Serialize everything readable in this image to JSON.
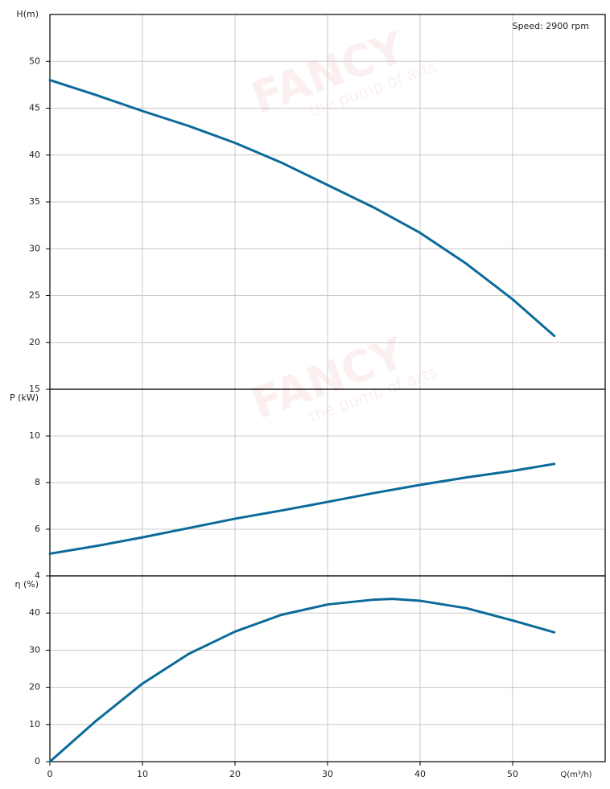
{
  "watermark": {
    "brand": "FANCY",
    "tagline": "the pump of arts"
  },
  "chart_data": [
    {
      "type": "line",
      "y_label": "H(m)",
      "annotation": "Speed: 2900 rpm",
      "color": "#0b6a9a",
      "x": [
        0,
        5,
        10,
        15,
        20,
        25,
        30,
        35,
        40,
        45,
        50,
        54.5
      ],
      "values": [
        48,
        46.4,
        44.7,
        43.1,
        41.3,
        39.2,
        36.8,
        34.4,
        31.7,
        28.4,
        24.6,
        20.7
      ],
      "xlim": [
        0,
        60
      ],
      "xticks": [
        0,
        10,
        20,
        30,
        40,
        50
      ],
      "ylim": [
        15,
        55
      ],
      "yticks": [
        15,
        20,
        25,
        30,
        35,
        40,
        45,
        50
      ],
      "grid": true
    },
    {
      "type": "line",
      "y_label": "P (kW)",
      "color": "#0b6a9a",
      "x": [
        0,
        5,
        10,
        15,
        20,
        25,
        30,
        35,
        40,
        45,
        50,
        54.5
      ],
      "values": [
        4.95,
        5.28,
        5.65,
        6.05,
        6.45,
        6.8,
        7.17,
        7.55,
        7.9,
        8.22,
        8.5,
        8.8
      ],
      "xlim": [
        0,
        60
      ],
      "xticks": [
        0,
        10,
        20,
        30,
        40,
        50
      ],
      "ylim": [
        4,
        12
      ],
      "yticks": [
        4,
        6,
        8,
        10
      ],
      "grid": true
    },
    {
      "type": "line",
      "y_label": "η (%)",
      "x_label": "Q(m³/h)",
      "color": "#0b6a9a",
      "x": [
        0,
        5,
        10,
        15,
        20,
        25,
        30,
        35,
        37,
        40,
        45,
        50,
        54.5
      ],
      "values": [
        0,
        11,
        21,
        29,
        35,
        39.5,
        42.3,
        43.6,
        43.8,
        43.3,
        41.3,
        38,
        34.8
      ],
      "xlim": [
        0,
        60
      ],
      "xticks": [
        0,
        10,
        20,
        30,
        40,
        50
      ],
      "ylim": [
        0,
        50
      ],
      "yticks": [
        0,
        10,
        20,
        30,
        40
      ],
      "grid": true
    }
  ]
}
